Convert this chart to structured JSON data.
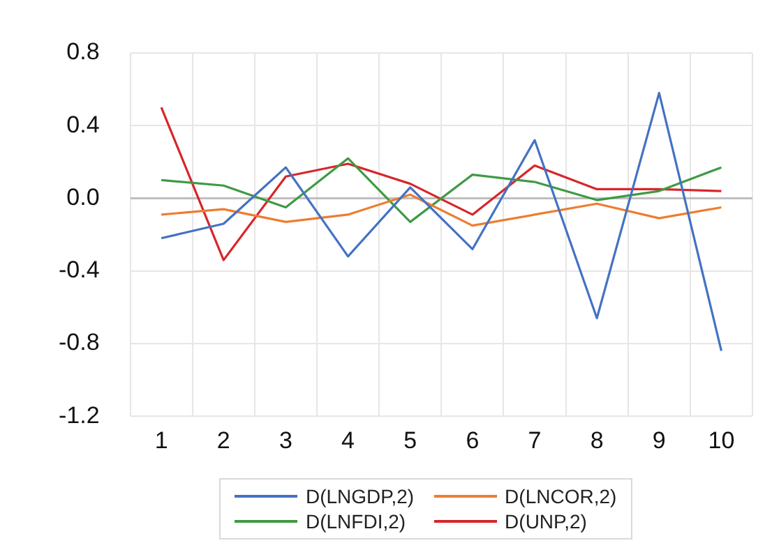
{
  "chart_data": {
    "type": "line",
    "categories": [
      "1",
      "2",
      "3",
      "4",
      "5",
      "6",
      "7",
      "8",
      "9",
      "10"
    ],
    "series": [
      {
        "name": "D(LNGDP,2)",
        "color": "#4472c4",
        "values": [
          -0.22,
          -0.14,
          0.17,
          -0.32,
          0.06,
          -0.28,
          0.32,
          -0.66,
          0.58,
          -0.84
        ]
      },
      {
        "name": "D(LNCOR,2)",
        "color": "#ed7d31",
        "values": [
          -0.09,
          -0.06,
          -0.13,
          -0.09,
          0.02,
          -0.15,
          -0.09,
          -0.03,
          -0.11,
          -0.05
        ]
      },
      {
        "name": "D(LNFDI,2)",
        "color": "#3f9a43",
        "values": [
          0.1,
          0.07,
          -0.05,
          0.22,
          -0.13,
          0.13,
          0.09,
          -0.01,
          0.04,
          0.17
        ]
      },
      {
        "name": "D(UNP,2)",
        "color": "#d7262b",
        "values": [
          0.5,
          -0.34,
          0.12,
          0.19,
          0.08,
          -0.09,
          0.18,
          0.05,
          0.05,
          0.04
        ]
      }
    ],
    "ylim": [
      -1.2,
      0.8
    ],
    "yticks": [
      {
        "value": -1.2,
        "label": "-1.2"
      },
      {
        "value": -0.8,
        "label": "-0.8"
      },
      {
        "value": -0.4,
        "label": "-0.4"
      },
      {
        "value": 0,
        "label": "0.0"
      },
      {
        "value": 0.4,
        "label": "0.4"
      },
      {
        "value": 0.8,
        "label": "0.8"
      }
    ],
    "grid": true,
    "legend": "bottom",
    "marker": "none",
    "line_style": "solid"
  }
}
